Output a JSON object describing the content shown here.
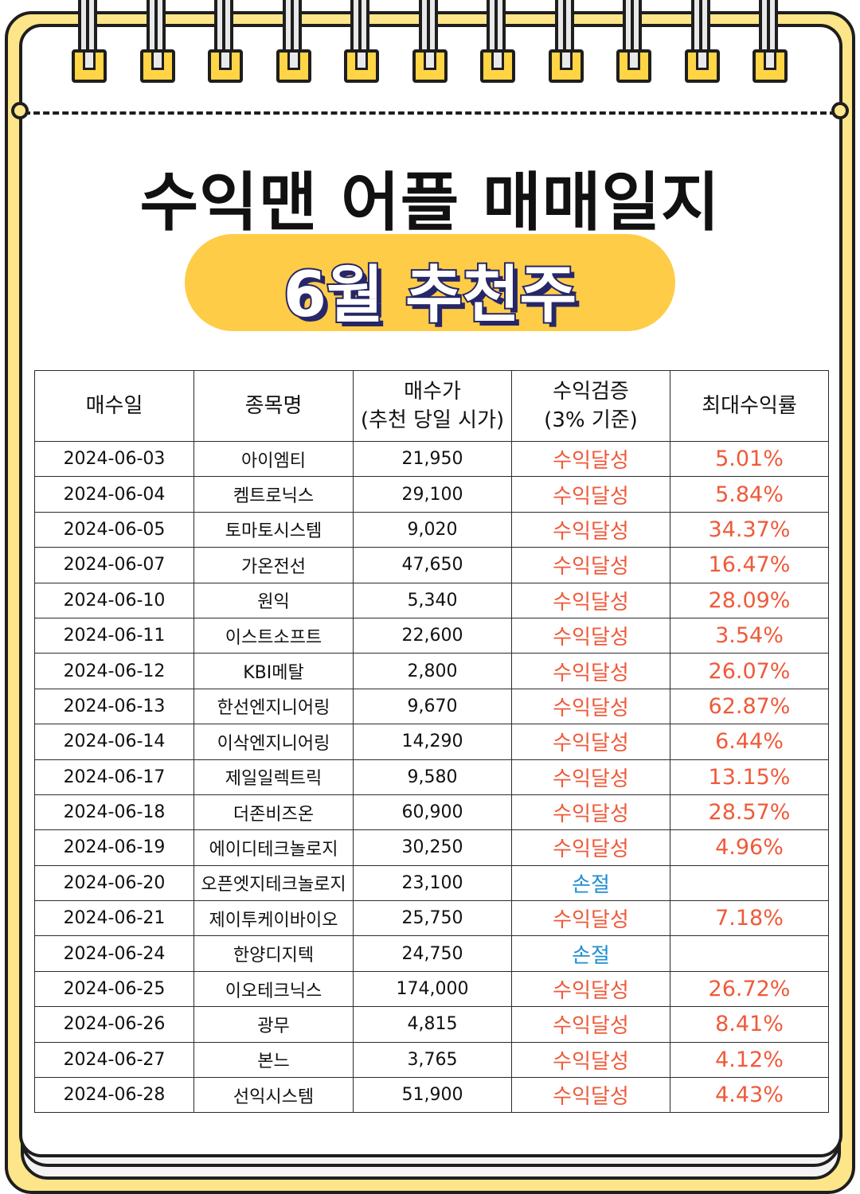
{
  "title": "수익맨 어플 매매일지",
  "subtitle": "6월 추천주",
  "table": {
    "headers": [
      "매수일",
      "종목명",
      "매수가\n(추천 당일 시가)",
      "수익검증\n(3% 기준)",
      "최대수익률"
    ],
    "rows": [
      {
        "date": "2024-06-03",
        "name": "아이엠티",
        "price": "21,950",
        "status": "수익달성",
        "rate": "5.01%"
      },
      {
        "date": "2024-06-04",
        "name": "켐트로닉스",
        "price": "29,100",
        "status": "수익달성",
        "rate": "5.84%"
      },
      {
        "date": "2024-06-05",
        "name": "토마토시스템",
        "price": "9,020",
        "status": "수익달성",
        "rate": "34.37%"
      },
      {
        "date": "2024-06-07",
        "name": "가온전선",
        "price": "47,650",
        "status": "수익달성",
        "rate": "16.47%"
      },
      {
        "date": "2024-06-10",
        "name": "원익",
        "price": "5,340",
        "status": "수익달성",
        "rate": "28.09%"
      },
      {
        "date": "2024-06-11",
        "name": "이스트소프트",
        "price": "22,600",
        "status": "수익달성",
        "rate": "3.54%"
      },
      {
        "date": "2024-06-12",
        "name": "KBI메탈",
        "price": "2,800",
        "status": "수익달성",
        "rate": "26.07%"
      },
      {
        "date": "2024-06-13",
        "name": "한선엔지니어링",
        "price": "9,670",
        "status": "수익달성",
        "rate": "62.87%"
      },
      {
        "date": "2024-06-14",
        "name": "이삭엔지니어링",
        "price": "14,290",
        "status": "수익달성",
        "rate": "6.44%"
      },
      {
        "date": "2024-06-17",
        "name": "제일일렉트릭",
        "price": "9,580",
        "status": "수익달성",
        "rate": "13.15%"
      },
      {
        "date": "2024-06-18",
        "name": "더존비즈온",
        "price": "60,900",
        "status": "수익달성",
        "rate": "28.57%"
      },
      {
        "date": "2024-06-19",
        "name": "에이디테크놀로지",
        "price": "30,250",
        "status": "수익달성",
        "rate": "4.96%"
      },
      {
        "date": "2024-06-20",
        "name": "오픈엣지테크놀로지",
        "price": "23,100",
        "status": "손절",
        "rate": ""
      },
      {
        "date": "2024-06-21",
        "name": "제이투케이바이오",
        "price": "25,750",
        "status": "수익달성",
        "rate": "7.18%"
      },
      {
        "date": "2024-06-24",
        "name": "한양디지텍",
        "price": "24,750",
        "status": "손절",
        "rate": ""
      },
      {
        "date": "2024-06-25",
        "name": "이오테크닉스",
        "price": "174,000",
        "status": "수익달성",
        "rate": "26.72%"
      },
      {
        "date": "2024-06-26",
        "name": "광무",
        "price": "4,815",
        "status": "수익달성",
        "rate": "8.41%"
      },
      {
        "date": "2024-06-27",
        "name": "본느",
        "price": "3,765",
        "status": "수익달성",
        "rate": "4.12%"
      },
      {
        "date": "2024-06-28",
        "name": "선익시스템",
        "price": "51,900",
        "status": "수익달성",
        "rate": "4.43%"
      }
    ]
  },
  "colors": {
    "gain": "#ef5a3a",
    "loss": "#1d8fd0",
    "accent": "#ffcc47",
    "background": "#fde58a"
  }
}
